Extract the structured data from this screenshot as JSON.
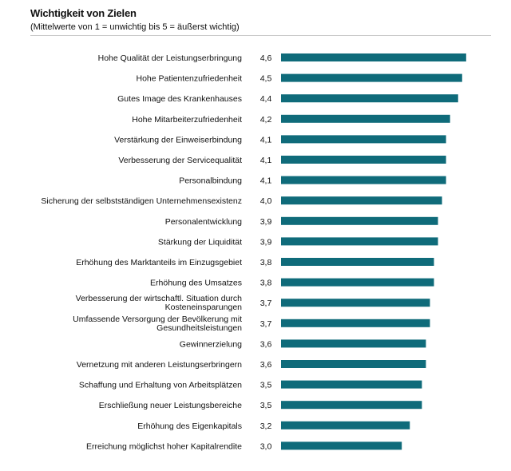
{
  "chart_data": {
    "type": "bar",
    "orientation": "horizontal",
    "title": "Wichtigkeit von Zielen",
    "subtitle": "(Mittelwerte von 1 = unwichtig bis 5 = äußerst wichtig)",
    "xlabel": "",
    "ylabel": "",
    "xlim": [
      0,
      5
    ],
    "grid": false,
    "bar_color": "#0f6b7a",
    "categories": [
      "Hohe Qualität der Leistungserbringung",
      "Hohe Patientenzufriedenheit",
      "Gutes Image des Krankenhauses",
      "Hohe Mitarbeiterzufriedenheit",
      "Verstärkung der Einweiserbindung",
      "Verbesserung der Servicequalität",
      "Personalbindung",
      "Sicherung der selbstständigen Unternehmensexistenz",
      "Personalentwicklung",
      "Stärkung der Liquidität",
      "Erhöhung des Marktanteils im Einzugsgebiet",
      "Erhöhung des Umsatzes",
      "Verbesserung der wirtschaftl. Situation durch Kosteneinsparungen",
      "Umfassende Versorgung der Bevölkerung mit Gesundheitsleistungen",
      "Gewinnerzielung",
      "Vernetzung mit anderen Leistungserbringern",
      "Schaffung und Erhaltung von Arbeitsplätzen",
      "Erschließung neuer Leistungsbereiche",
      "Erhöhung des Eigenkapitals",
      "Erreichung möglichst hoher Kapitalrendite"
    ],
    "label_lines": [
      [
        "Hohe Qualität der Leistungserbringung"
      ],
      [
        "Hohe Patientenzufriedenheit"
      ],
      [
        "Gutes Image des Krankenhauses"
      ],
      [
        "Hohe Mitarbeiterzufriedenheit"
      ],
      [
        "Verstärkung der Einweiserbindung"
      ],
      [
        "Verbesserung der Servicequalität"
      ],
      [
        "Personalbindung"
      ],
      [
        "Sicherung der selbstständigen Unternehmensexistenz"
      ],
      [
        "Personalentwicklung"
      ],
      [
        "Stärkung der Liquidität"
      ],
      [
        "Erhöhung des Marktanteils im Einzugsgebiet"
      ],
      [
        "Erhöhung des Umsatzes"
      ],
      [
        "Verbesserung der wirtschaftl. Situation durch",
        "Kosteneinsparungen"
      ],
      [
        "Umfassende Versorgung der Bevölkerung mit",
        "Gesundheitsleistungen"
      ],
      [
        "Gewinnerzielung"
      ],
      [
        "Vernetzung mit anderen Leistungserbringern"
      ],
      [
        "Schaffung und Erhaltung von Arbeitsplätzen"
      ],
      [
        "Erschließung neuer Leistungsbereiche"
      ],
      [
        "Erhöhung des Eigenkapitals"
      ],
      [
        "Erreichung möglichst hoher Kapitalrendite"
      ]
    ],
    "values": [
      4.6,
      4.5,
      4.4,
      4.2,
      4.1,
      4.1,
      4.1,
      4.0,
      3.9,
      3.9,
      3.8,
      3.8,
      3.7,
      3.7,
      3.6,
      3.6,
      3.5,
      3.5,
      3.2,
      3.0
    ],
    "value_labels": [
      "4,6",
      "4,5",
      "4,4",
      "4,2",
      "4,1",
      "4,1",
      "4,1",
      "4,0",
      "3,9",
      "3,9",
      "3,8",
      "3,8",
      "3,7",
      "3,7",
      "3,6",
      "3,6",
      "3,5",
      "3,5",
      "3,2",
      "3,0"
    ]
  }
}
